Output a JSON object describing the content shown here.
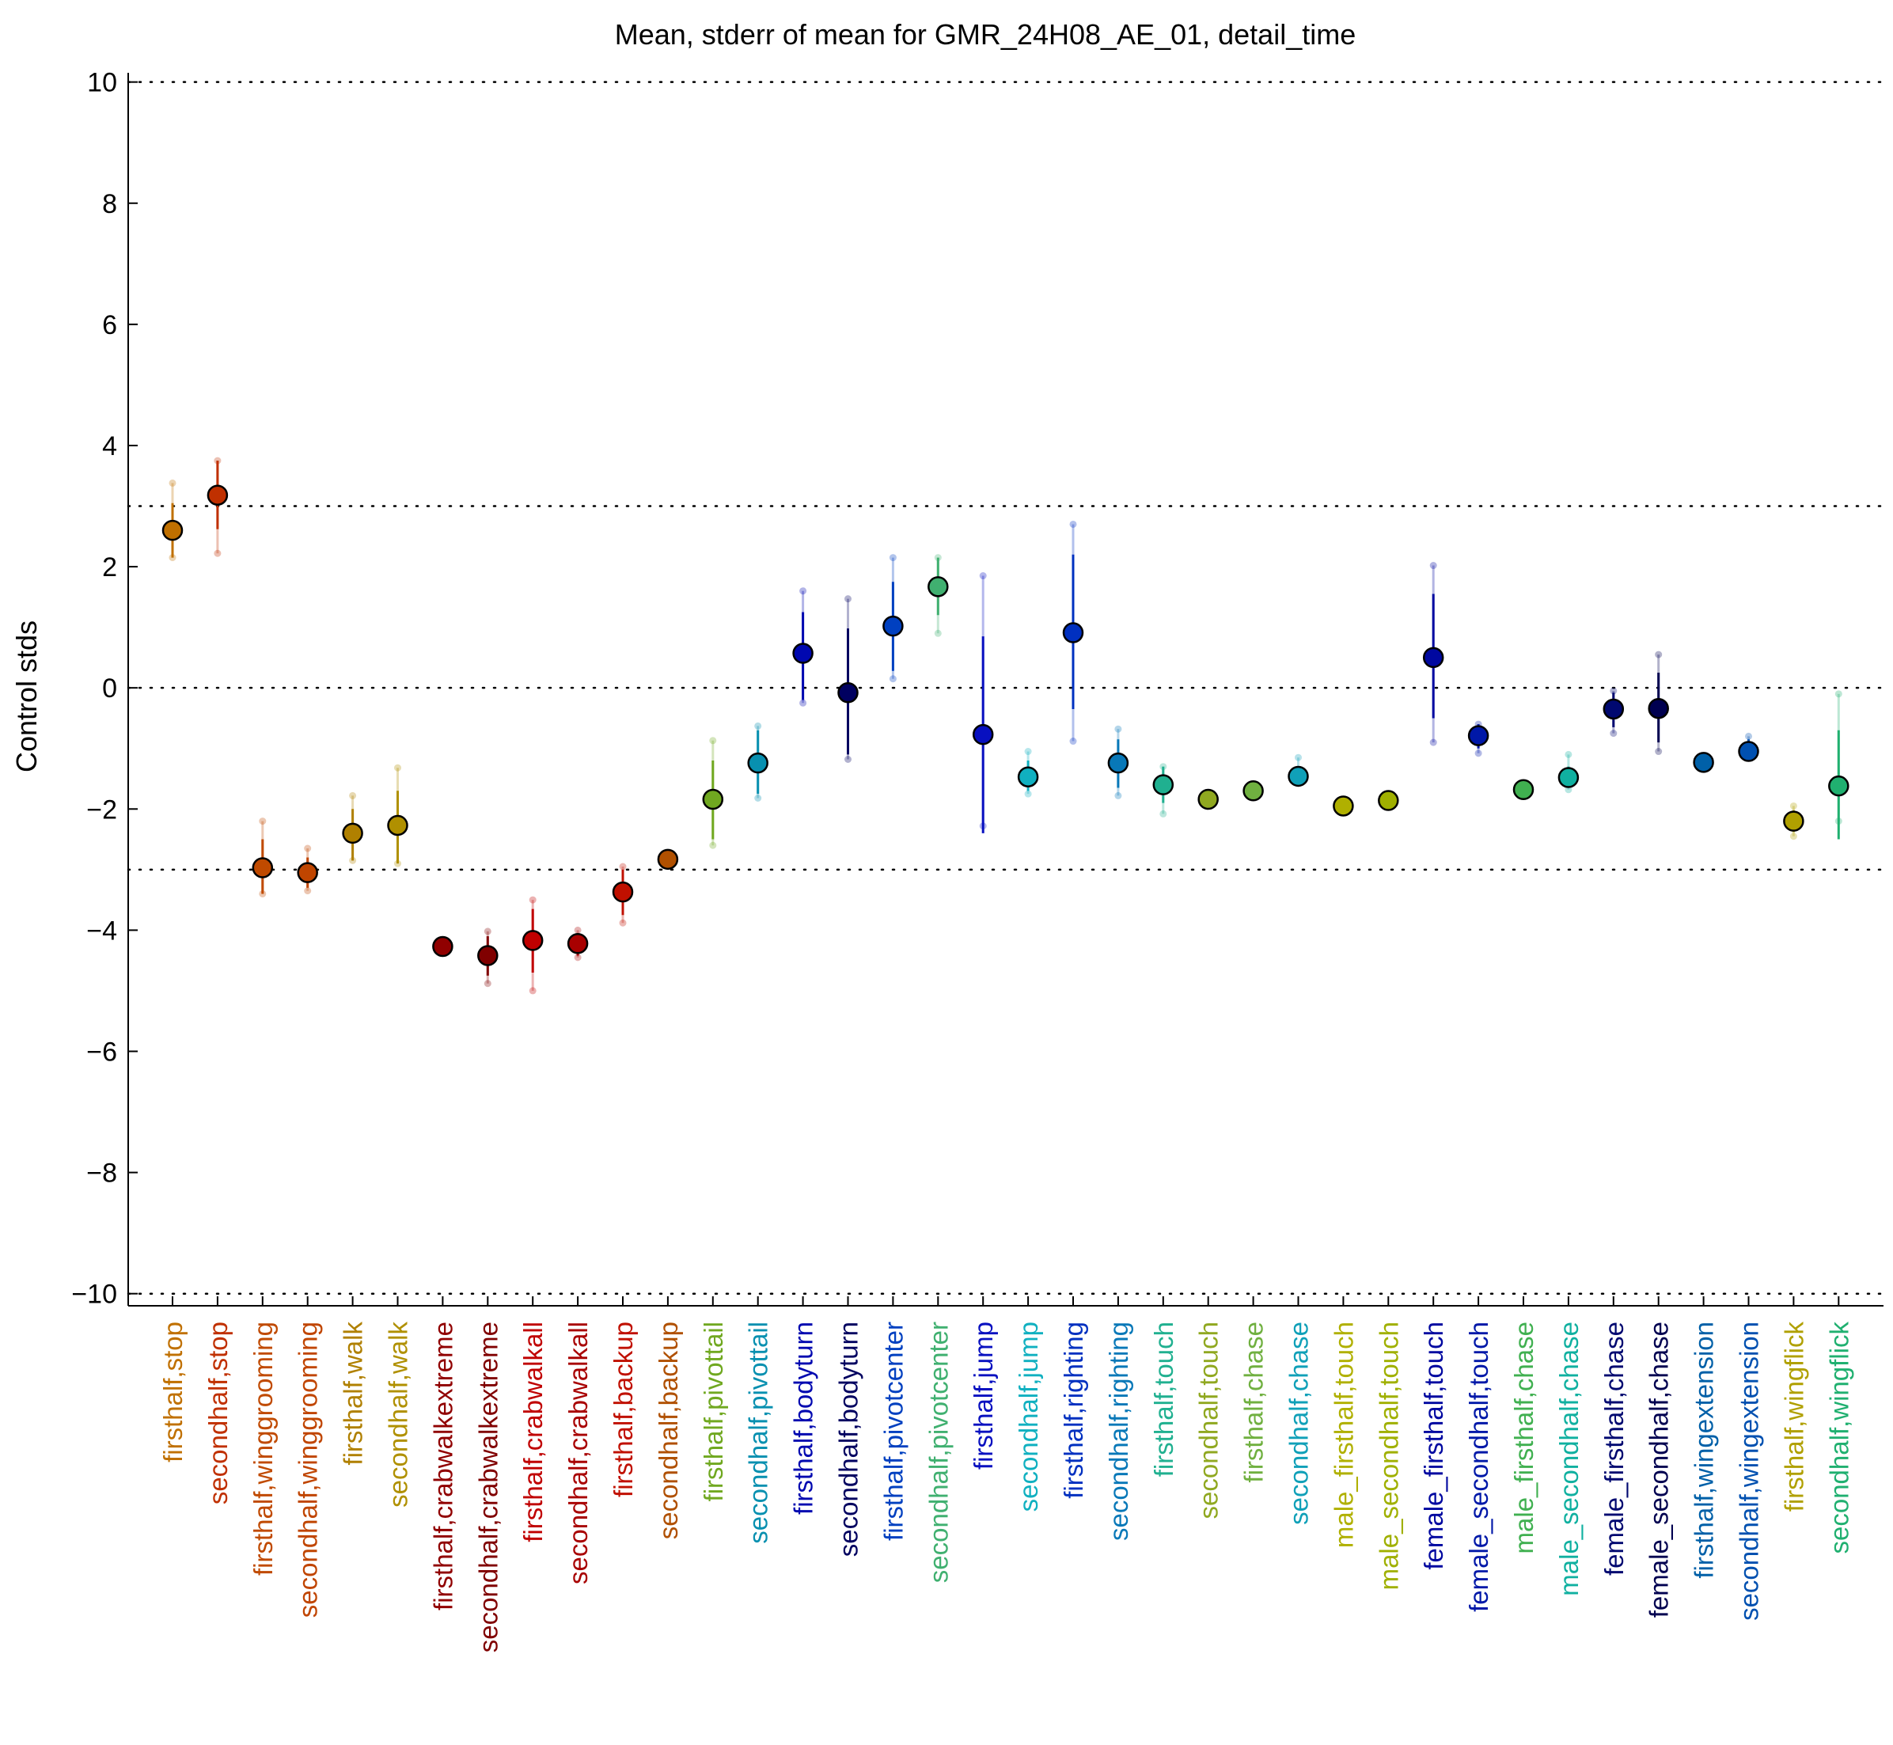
{
  "chart_data": {
    "type": "scatter",
    "title": "Mean, stderr of mean for GMR_24H08_AE_01, detail_time",
    "xlabel": "",
    "ylabel": "Control stds",
    "ylim": [
      -10.2,
      10.1
    ],
    "yticks": [
      10,
      8,
      6,
      4,
      2,
      0,
      -2,
      -4,
      -6,
      -8,
      -10
    ],
    "ytick_labels": [
      "10",
      "8",
      "6",
      "4",
      "2",
      "0",
      "−2",
      "−4",
      "−6",
      "−8",
      "−10"
    ],
    "reference_lines": [
      10,
      3,
      0,
      -3,
      -10
    ],
    "grid": false,
    "legend": "none",
    "points": [
      {
        "label": "firsthalf,stop",
        "color": "#c07000",
        "mean": 2.6,
        "se_low": 2.15,
        "se_high": 3.05,
        "ext_low": 2.15,
        "ext_high": 3.38
      },
      {
        "label": "secondhalf,stop",
        "color": "#c03000",
        "mean": 3.18,
        "se_low": 2.62,
        "se_high": 3.75,
        "ext_low": 2.22,
        "ext_high": 3.75
      },
      {
        "label": "firsthalf,winggrooming",
        "color": "#c04a00",
        "mean": -2.97,
        "se_low": -3.4,
        "se_high": -2.5,
        "ext_low": -3.4,
        "ext_high": -2.2
      },
      {
        "label": "secondhalf,winggrooming",
        "color": "#c04500",
        "mean": -3.05,
        "se_low": -3.3,
        "se_high": -2.8,
        "ext_low": -3.35,
        "ext_high": -2.65
      },
      {
        "label": "firsthalf,walk",
        "color": "#b08000",
        "mean": -2.4,
        "se_low": -2.85,
        "se_high": -2.0,
        "ext_low": -2.85,
        "ext_high": -1.78
      },
      {
        "label": "secondhalf,walk",
        "color": "#b09000",
        "mean": -2.27,
        "se_low": -2.9,
        "se_high": -1.7,
        "ext_low": -2.9,
        "ext_high": -1.32
      },
      {
        "label": "firsthalf,crabwalkextreme",
        "color": "#900000",
        "mean": -4.27,
        "se_low": -4.35,
        "se_high": -4.2,
        "ext_low": -4.35,
        "ext_high": -4.2
      },
      {
        "label": "secondhalf,crabwalkextreme",
        "color": "#800000",
        "mean": -4.42,
        "se_low": -4.75,
        "se_high": -4.1,
        "ext_low": -4.88,
        "ext_high": -4.02
      },
      {
        "label": "firsthalf,crabwalkall",
        "color": "#c00000",
        "mean": -4.17,
        "se_low": -4.7,
        "se_high": -3.65,
        "ext_low": -5.0,
        "ext_high": -3.5
      },
      {
        "label": "secondhalf,crabwalkall",
        "color": "#a80000",
        "mean": -4.22,
        "se_low": -4.42,
        "se_high": -4.05,
        "ext_low": -4.45,
        "ext_high": -4.0
      },
      {
        "label": "firsthalf,backup",
        "color": "#c01000",
        "mean": -3.37,
        "se_low": -3.75,
        "se_high": -3.0,
        "ext_low": -3.88,
        "ext_high": -2.95
      },
      {
        "label": "secondhalf,backup",
        "color": "#b05000",
        "mean": -2.83,
        "se_low": -2.9,
        "se_high": -2.76,
        "ext_low": -2.9,
        "ext_high": -2.76
      },
      {
        "label": "firsthalf,pivottail",
        "color": "#70a820",
        "mean": -1.84,
        "se_low": -2.5,
        "se_high": -1.2,
        "ext_low": -2.6,
        "ext_high": -0.87
      },
      {
        "label": "secondhalf,pivottail",
        "color": "#0890b0",
        "mean": -1.24,
        "se_low": -1.75,
        "se_high": -0.7,
        "ext_low": -1.82,
        "ext_high": -0.63
      },
      {
        "label": "firsthalf,bodyturn",
        "color": "#0008b0",
        "mean": 0.57,
        "se_low": -0.2,
        "se_high": 1.25,
        "ext_low": -0.25,
        "ext_high": 1.6
      },
      {
        "label": "secondhalf,bodyturn",
        "color": "#000060",
        "mean": -0.08,
        "se_low": -1.1,
        "se_high": 0.98,
        "ext_low": -1.18,
        "ext_high": 1.47
      },
      {
        "label": "firsthalf,pivotcenter",
        "color": "#0040c0",
        "mean": 1.02,
        "se_low": 0.28,
        "se_high": 1.75,
        "ext_low": 0.15,
        "ext_high": 2.15
      },
      {
        "label": "secondhalf,pivotcenter",
        "color": "#40b070",
        "mean": 1.67,
        "se_low": 1.2,
        "se_high": 2.15,
        "ext_low": 0.9,
        "ext_high": 2.15
      },
      {
        "label": "firsthalf,jump",
        "color": "#0810c0",
        "mean": -0.77,
        "se_low": -2.4,
        "se_high": 0.85,
        "ext_low": -2.28,
        "ext_high": 1.85
      },
      {
        "label": "secondhalf,jump",
        "color": "#10b0c0",
        "mean": -1.47,
        "se_low": -1.7,
        "se_high": -1.2,
        "ext_low": -1.75,
        "ext_high": -1.05
      },
      {
        "label": "firsthalf,righting",
        "color": "#0030c0",
        "mean": 0.91,
        "se_low": -0.35,
        "se_high": 2.2,
        "ext_low": -0.88,
        "ext_high": 2.7
      },
      {
        "label": "secondhalf,righting",
        "color": "#0878b8",
        "mean": -1.24,
        "se_low": -1.65,
        "se_high": -0.85,
        "ext_low": -1.78,
        "ext_high": -0.68
      },
      {
        "label": "firsthalf,touch",
        "color": "#20b090",
        "mean": -1.6,
        "se_low": -1.9,
        "se_high": -1.3,
        "ext_low": -2.08,
        "ext_high": -1.3
      },
      {
        "label": "secondhalf,touch",
        "color": "#90a820",
        "mean": -1.84,
        "se_low": -1.9,
        "se_high": -1.78,
        "ext_low": -1.9,
        "ext_high": -1.78
      },
      {
        "label": "firsthalf,chase",
        "color": "#70b040",
        "mean": -1.7,
        "se_low": -1.76,
        "se_high": -1.64,
        "ext_low": -1.76,
        "ext_high": -1.64
      },
      {
        "label": "secondhalf,chase",
        "color": "#10a0b8",
        "mean": -1.46,
        "se_low": -1.55,
        "se_high": -1.3,
        "ext_low": -1.55,
        "ext_high": -1.15
      },
      {
        "label": "male_firsthalf,touch",
        "color": "#b0b000",
        "mean": -1.95,
        "se_low": -2.0,
        "se_high": -1.9,
        "ext_low": -2.0,
        "ext_high": -1.9
      },
      {
        "label": "male_secondhalf,touch",
        "color": "#a0b000",
        "mean": -1.86,
        "se_low": -1.92,
        "se_high": -1.8,
        "ext_low": -1.92,
        "ext_high": -1.8
      },
      {
        "label": "female_firsthalf,touch",
        "color": "#0008a0",
        "mean": 0.5,
        "se_low": -0.5,
        "se_high": 1.55,
        "ext_low": -0.9,
        "ext_high": 2.02
      },
      {
        "label": "female_secondhalf,touch",
        "color": "#0018a8",
        "mean": -0.79,
        "se_low": -1.0,
        "se_high": -0.6,
        "ext_low": -1.08,
        "ext_high": -0.6
      },
      {
        "label": "male_firsthalf,chase",
        "color": "#40b050",
        "mean": -1.68,
        "se_low": -1.74,
        "se_high": -1.62,
        "ext_low": -1.74,
        "ext_high": -1.62
      },
      {
        "label": "male_secondhalf,chase",
        "color": "#10b0a0",
        "mean": -1.48,
        "se_low": -1.65,
        "se_high": -1.3,
        "ext_low": -1.68,
        "ext_high": -1.1
      },
      {
        "label": "female_firsthalf,chase",
        "color": "#000870",
        "mean": -0.35,
        "se_low": -0.65,
        "se_high": -0.08,
        "ext_low": -0.75,
        "ext_high": -0.05
      },
      {
        "label": "female_secondhalf,chase",
        "color": "#000050",
        "mean": -0.34,
        "se_low": -0.9,
        "se_high": 0.25,
        "ext_low": -1.05,
        "ext_high": 0.55
      },
      {
        "label": "firsthalf,wingextension",
        "color": "#0060a8",
        "mean": -1.23,
        "se_low": -1.28,
        "se_high": -1.18,
        "ext_low": -1.28,
        "ext_high": -1.18
      },
      {
        "label": "secondhalf,wingextension",
        "color": "#0050b0",
        "mean": -1.05,
        "se_low": -1.12,
        "se_high": -0.85,
        "ext_low": -1.12,
        "ext_high": -0.8
      },
      {
        "label": "firsthalf,wingflick",
        "color": "#b0a000",
        "mean": -2.2,
        "se_low": -2.38,
        "se_high": -2.02,
        "ext_low": -2.45,
        "ext_high": -1.95
      },
      {
        "label": "secondhalf,wingflick",
        "color": "#20b070",
        "mean": -1.62,
        "se_low": -2.5,
        "se_high": -0.7,
        "ext_low": -2.2,
        "ext_high": -0.1
      }
    ]
  }
}
